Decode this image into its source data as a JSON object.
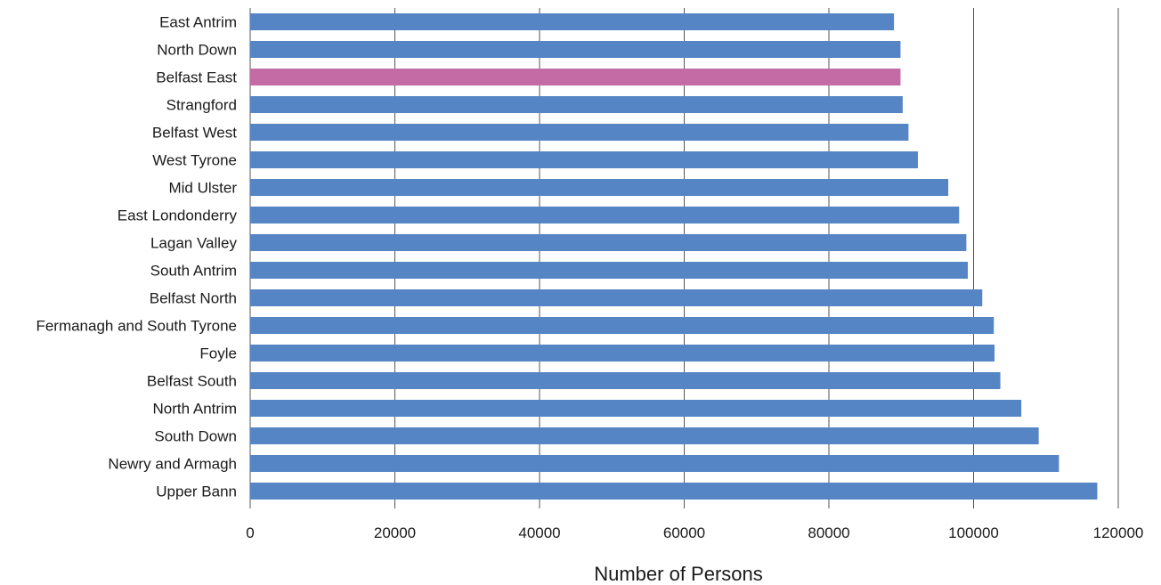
{
  "chart_data": {
    "type": "bar",
    "orientation": "horizontal",
    "title": "",
    "xlabel": "Number of Persons",
    "ylabel": "",
    "xlim": [
      0,
      120000
    ],
    "xticks": [
      0,
      20000,
      40000,
      60000,
      80000,
      100000,
      120000
    ],
    "xtick_labels": [
      "0",
      "20000",
      "40000",
      "60000",
      "80000",
      "100000",
      "120000"
    ],
    "grid": "vertical",
    "categories": [
      "East Antrim",
      "North Down",
      "Belfast East",
      "Strangford",
      "Belfast West",
      "West Tyrone",
      "Mid Ulster",
      "East Londonderry",
      "Lagan Valley",
      "South Antrim",
      "Belfast North",
      "Fermanagh and South Tyrone",
      "Foyle",
      "Belfast South",
      "North Antrim",
      "South Down",
      "Newry and Armagh",
      "Upper Bann"
    ],
    "values": [
      89000,
      89900,
      89900,
      90200,
      91000,
      92300,
      96500,
      98000,
      99000,
      99200,
      101200,
      102800,
      102900,
      103700,
      106600,
      109000,
      111800,
      117100
    ],
    "highlight": "Belfast East",
    "colors": {
      "bar": "#5585c5",
      "highlight": "#c46aa5",
      "grid": "#555555"
    }
  }
}
